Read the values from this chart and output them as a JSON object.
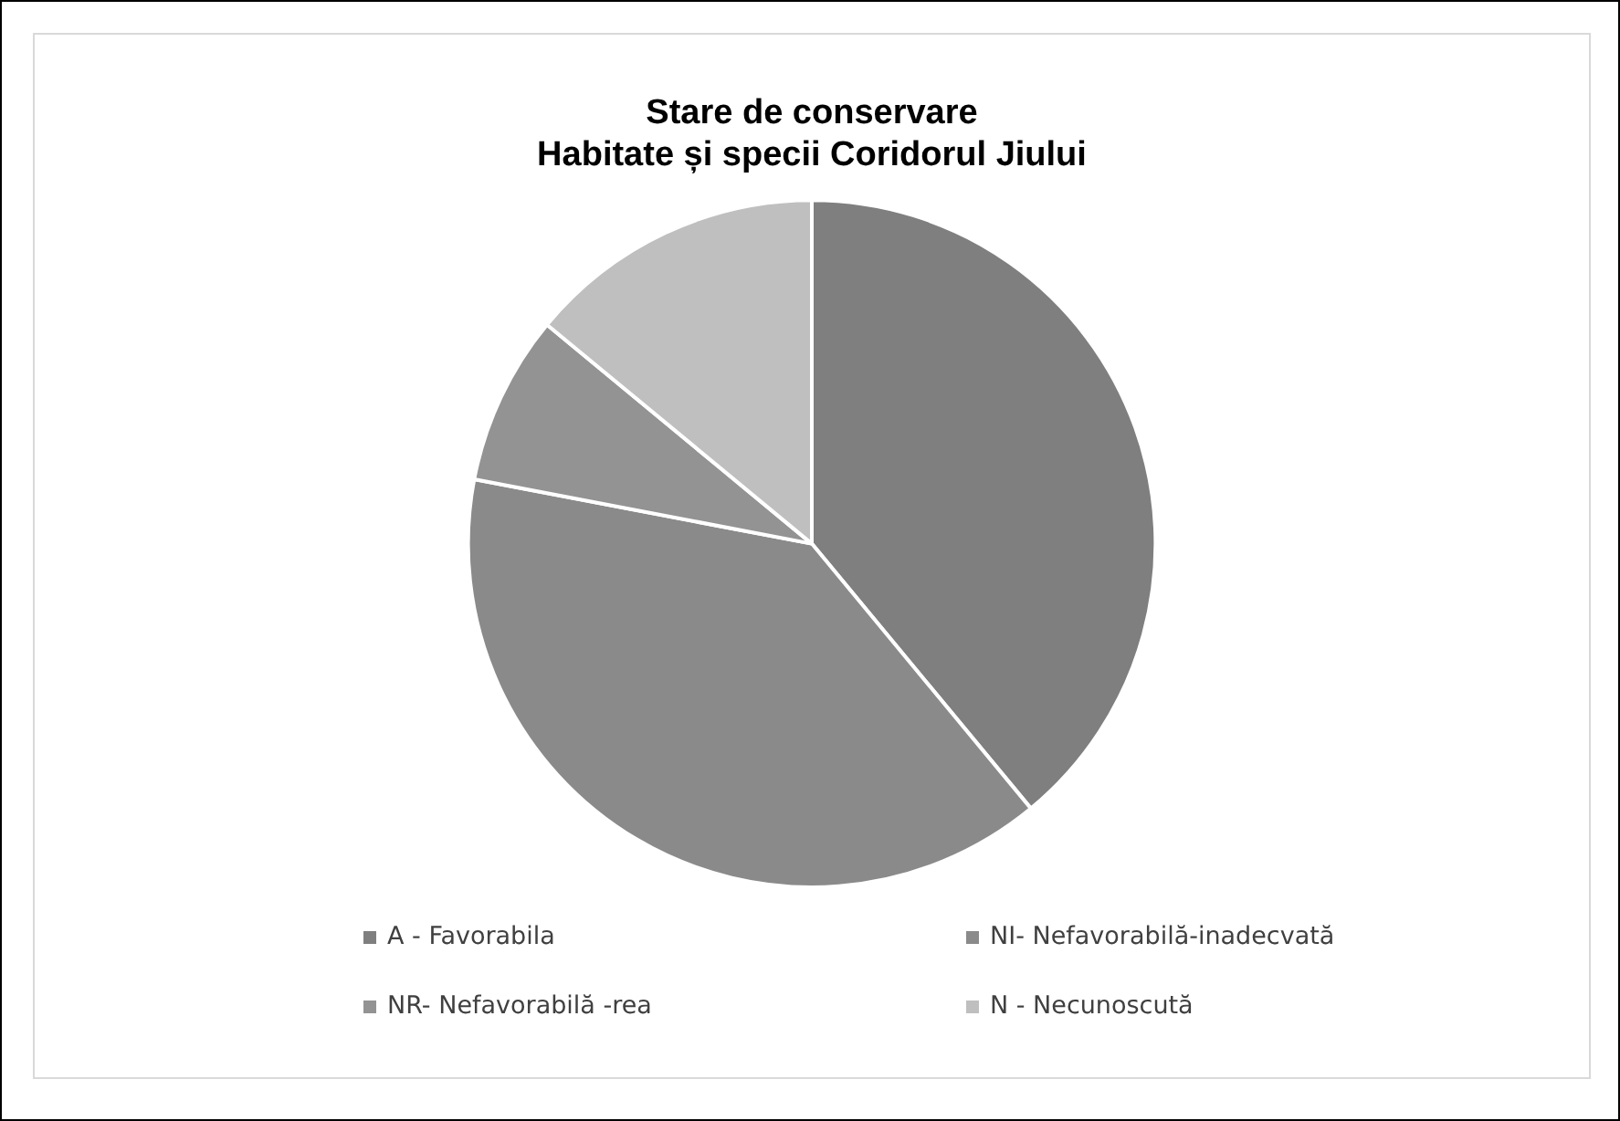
{
  "chart_data": {
    "type": "pie",
    "title": "Stare de conservare\nHabitate și specii Coridorul Jiului",
    "categories": [
      "A - Favorabila",
      "NI- Nefavorabilă-inadecvată",
      "NR- Nefavorabilă -rea",
      "N - Necunoscută"
    ],
    "values": [
      39,
      39,
      8,
      14
    ],
    "colors": [
      "#7f7f7f",
      "#8a8a8a",
      "#939393",
      "#bfbfbf"
    ],
    "legend": "bottom"
  }
}
